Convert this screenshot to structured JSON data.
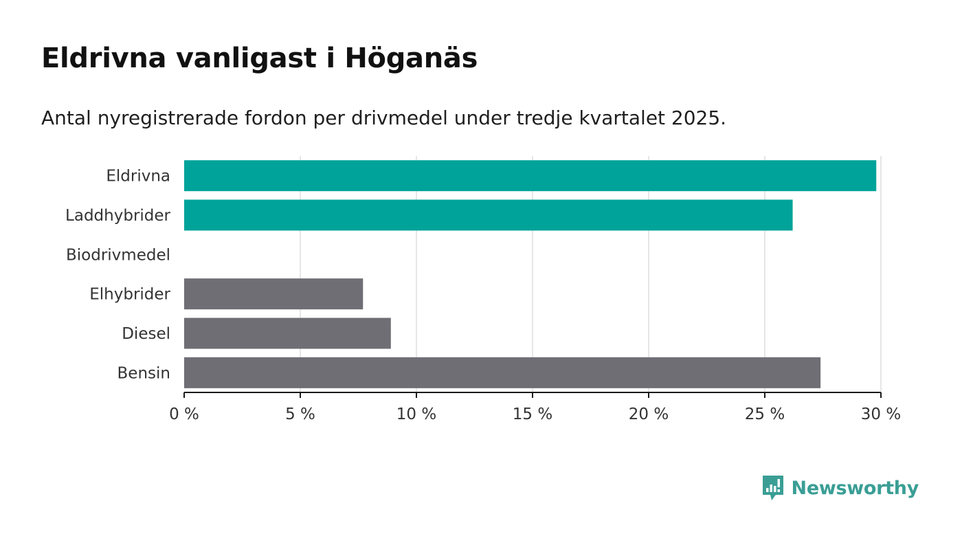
{
  "header": {
    "title": "Eldrivna vanligast i Höganäs",
    "subtitle": "Antal nyregistrerade fordon per drivmedel under tredje kvartalet 2025."
  },
  "brand": {
    "name": "Newsworthy",
    "color": "#3a9e95"
  },
  "chart_data": {
    "type": "bar",
    "orientation": "horizontal",
    "title": "Eldrivna vanligast i Höganäs",
    "subtitle": "Antal nyregistrerade fordon per drivmedel under tredje kvartalet 2025.",
    "categories": [
      "Eldrivna",
      "Laddhybrider",
      "Biodrivmedel",
      "Elhybrider",
      "Diesel",
      "Bensin"
    ],
    "values": [
      29.8,
      26.2,
      0,
      7.7,
      8.9,
      27.4
    ],
    "colors": [
      "#00a39a",
      "#00a39a",
      "#00a39a",
      "#6f6e75",
      "#6f6e75",
      "#6f6e75"
    ],
    "xlim": [
      0,
      30
    ],
    "xticks": [
      0,
      5,
      10,
      15,
      20,
      25,
      30
    ],
    "xtick_labels": [
      "0 %",
      "5 %",
      "10 %",
      "15 %",
      "20 %",
      "25 %",
      "30 %"
    ],
    "xlabel": "",
    "ylabel": "",
    "unit": "%",
    "grid": true,
    "legend": "none"
  }
}
